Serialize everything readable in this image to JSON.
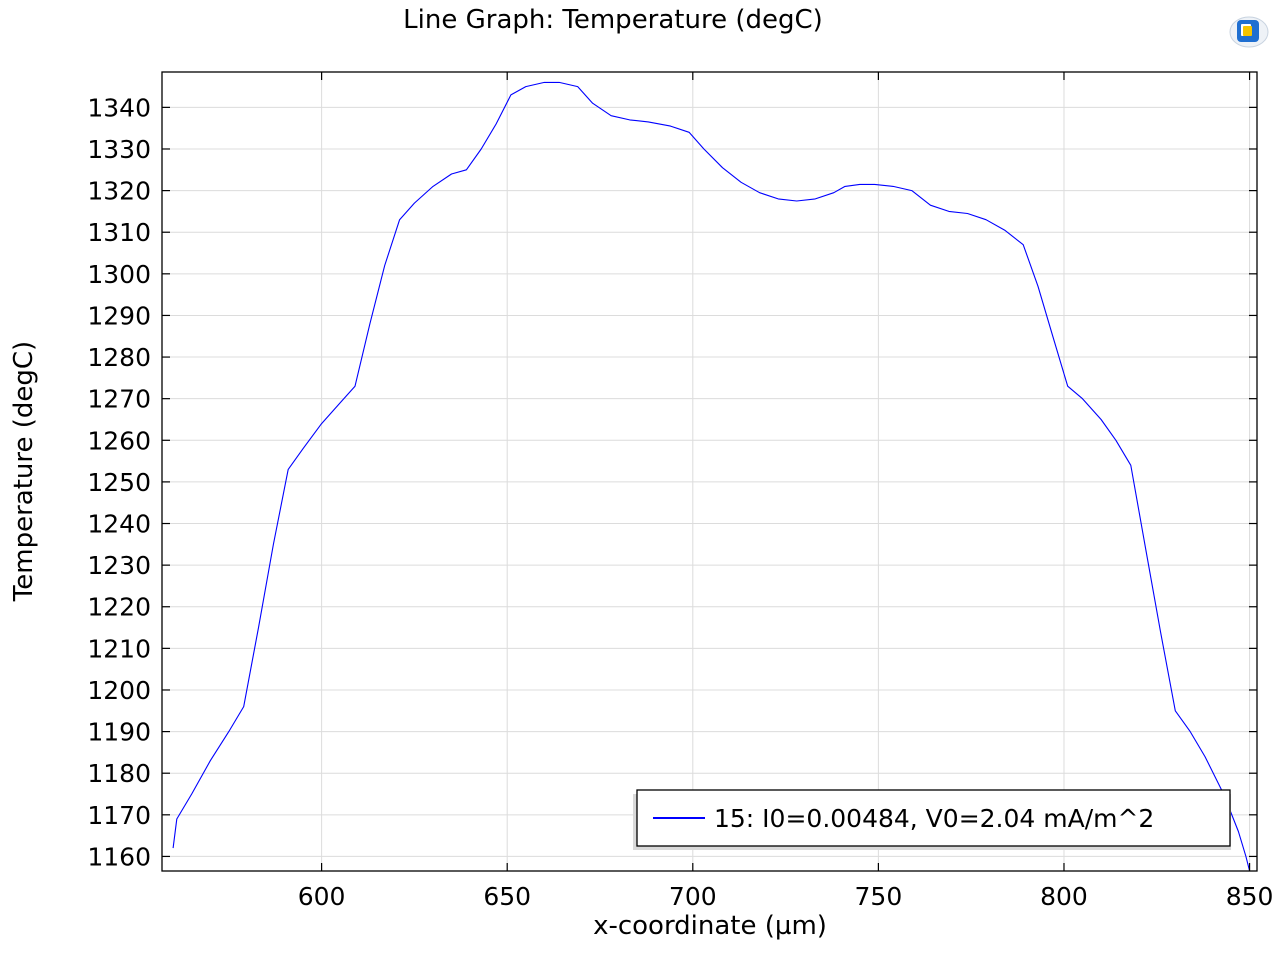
{
  "colors": {
    "series": "#0000ff",
    "grid": "#dcdcdc",
    "axis": "#000000",
    "background": "#ffffff",
    "logo_blue": "#1f6fd1",
    "logo_yellow": "#f5c400"
  },
  "toolbar": {
    "logo_icon": "comsol-graphics-logo-icon"
  },
  "chart_data": {
    "type": "line",
    "title": "Line Graph: Temperature (degC)",
    "xlabel": "x-coordinate (µm)",
    "ylabel": "Temperature (degC)",
    "xlim": [
      557,
      852
    ],
    "ylim": [
      1156.5,
      1348.5
    ],
    "xticks": [
      600,
      650,
      700,
      750,
      800,
      850
    ],
    "yticks": [
      1160,
      1170,
      1180,
      1190,
      1200,
      1210,
      1220,
      1230,
      1240,
      1250,
      1260,
      1270,
      1280,
      1290,
      1300,
      1310,
      1320,
      1330,
      1340
    ],
    "grid": true,
    "legend": {
      "position": "bottom-right",
      "entries": [
        "15: I0=0.00484, V0=2.04 mA/m^2"
      ]
    },
    "series": [
      {
        "name": "15: I0=0.00484, V0=2.04 mA/m^2",
        "x": [
          560,
          561,
          565,
          570,
          575,
          579,
          583,
          587,
          591,
          595,
          600,
          605,
          609,
          613,
          617,
          621,
          625,
          630,
          635,
          639,
          643,
          647,
          651,
          655,
          660,
          664,
          669,
          673,
          678,
          683,
          688,
          694,
          699,
          703,
          708,
          713,
          718,
          723,
          728,
          733,
          738,
          741,
          745,
          749,
          754,
          759,
          764,
          769,
          774,
          779,
          784,
          789,
          793,
          797,
          801,
          805,
          810,
          814,
          818,
          822,
          826,
          830,
          834,
          838,
          843,
          847,
          849,
          850
        ],
        "y": [
          1162,
          1169,
          1175,
          1183,
          1190,
          1196,
          1215,
          1235,
          1253,
          1258,
          1264,
          1269,
          1273,
          1288,
          1302,
          1313,
          1317,
          1321,
          1324,
          1325,
          1330,
          1336,
          1343,
          1345,
          1346,
          1346,
          1345,
          1341,
          1338,
          1337,
          1336.5,
          1335.5,
          1334,
          1330,
          1325.5,
          1322,
          1319.5,
          1318,
          1317.5,
          1318,
          1319.5,
          1321,
          1321.5,
          1321.5,
          1321,
          1320,
          1316.5,
          1315,
          1314.5,
          1313,
          1310.5,
          1307,
          1297,
          1285,
          1273,
          1270,
          1265,
          1260,
          1254,
          1234,
          1214,
          1195,
          1190,
          1184,
          1175,
          1166,
          1160,
          1156.5
        ]
      }
    ]
  }
}
